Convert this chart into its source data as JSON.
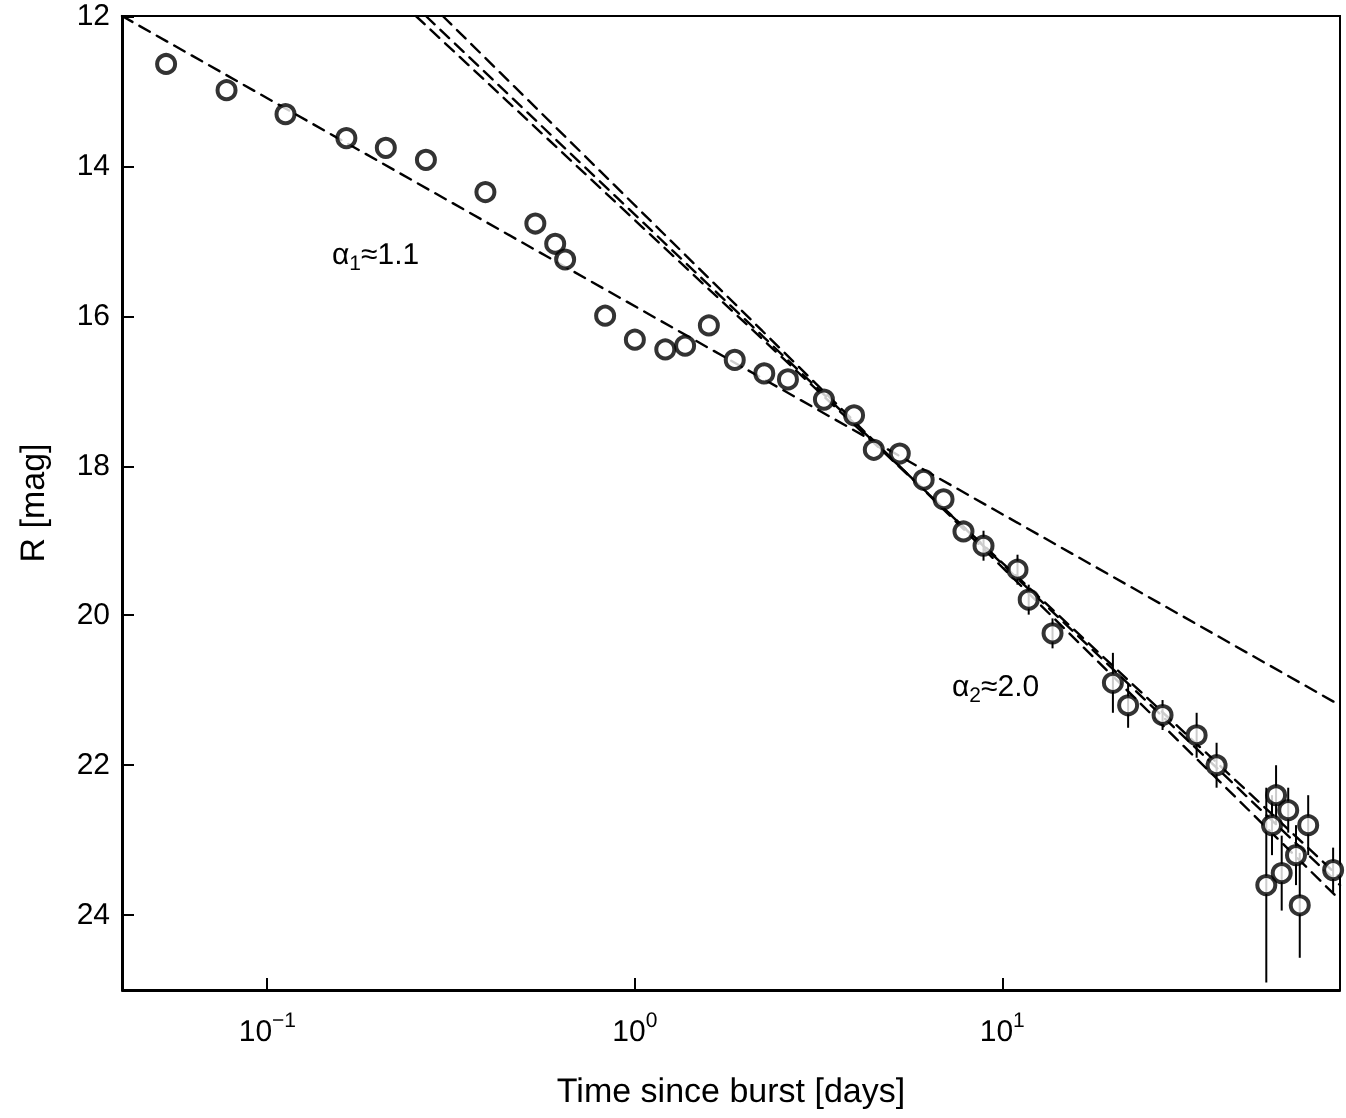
{
  "chart_data": {
    "type": "scatter",
    "xlabel": "Time since burst [days]",
    "ylabel": "R [mag]",
    "log": "x",
    "xlim": [
      0.0402,
      83
    ],
    "ylim": [
      25,
      12
    ],
    "xticks": [
      {
        "value": 0.1,
        "label": "10$^{−1}$"
      },
      {
        "value": 1,
        "label": "10$^{0}$"
      },
      {
        "value": 10,
        "label": "10$^{1}$"
      }
    ],
    "yticks": [
      12,
      14,
      16,
      18,
      20,
      22,
      24
    ],
    "series": [
      {
        "color": "#000000",
        "marker": "circle",
        "x": [
          0.053,
          0.0774,
          0.112,
          0.164,
          0.21,
          0.27,
          0.392,
          0.536,
          0.607,
          0.646,
          0.83,
          1.0,
          1.21,
          1.37,
          1.59,
          1.87,
          2.25,
          2.61,
          3.27,
          3.95,
          4.47,
          5.26,
          6.11,
          6.92,
          7.84,
          8.89,
          11,
          11.8,
          13.7,
          20,
          22,
          27.3,
          33.8,
          38.3,
          52.3,
          54.2,
          55.6,
          57.6,
          60,
          63,
          64.5,
          68,
          79.5
        ],
        "values": [
          12.64,
          12.99,
          13.31,
          13.63,
          13.76,
          13.92,
          14.35,
          14.77,
          15.04,
          15.25,
          16.0,
          16.32,
          16.45,
          16.4,
          16.13,
          16.59,
          16.77,
          16.85,
          17.12,
          17.33,
          17.79,
          17.84,
          18.19,
          18.45,
          18.88,
          19.07,
          19.39,
          19.79,
          20.24,
          20.9,
          21.2,
          21.33,
          21.6,
          22.0,
          23.6,
          22.8,
          22.4,
          23.44,
          22.6,
          23.2,
          23.87,
          22.8,
          23.4
        ],
        "errors": [
          null,
          null,
          null,
          null,
          null,
          null,
          null,
          null,
          null,
          null,
          null,
          null,
          null,
          null,
          null,
          null,
          null,
          null,
          null,
          null,
          null,
          null,
          null,
          null,
          null,
          0.2,
          0.2,
          0.2,
          0.2,
          0.4,
          0.3,
          0.2,
          0.3,
          0.3,
          1.3,
          0.4,
          0.4,
          0.5,
          0.3,
          0.4,
          0.7,
          0.4,
          0.3
        ]
      },
      {
        "type": "line",
        "color": "#000000",
        "marker": "none",
        "line_style": "dashed",
        "x": [
          0.0402,
          83
        ],
        "values": [
          12,
          21.2
        ]
      },
      {
        "type": "line",
        "color": "#000000",
        "marker": "none",
        "line_style": "dashed",
        "x": [
          0.2535,
          83
        ],
        "values": [
          12,
          23.5
        ]
      },
      {
        "type": "line",
        "color": "#000000",
        "marker": "none",
        "line_style": "dashed",
        "x": [
          0.27,
          83
        ],
        "values": [
          12,
          23.6
        ]
      },
      {
        "type": "line",
        "color": "#000000",
        "marker": "none",
        "line_style": "dashed",
        "x": [
          0.3,
          83
        ],
        "values": [
          12,
          23.8
        ]
      }
    ],
    "annotations": [
      "α$_{1}$≈1.1",
      "α$_{2}$≈2.0"
    ]
  }
}
